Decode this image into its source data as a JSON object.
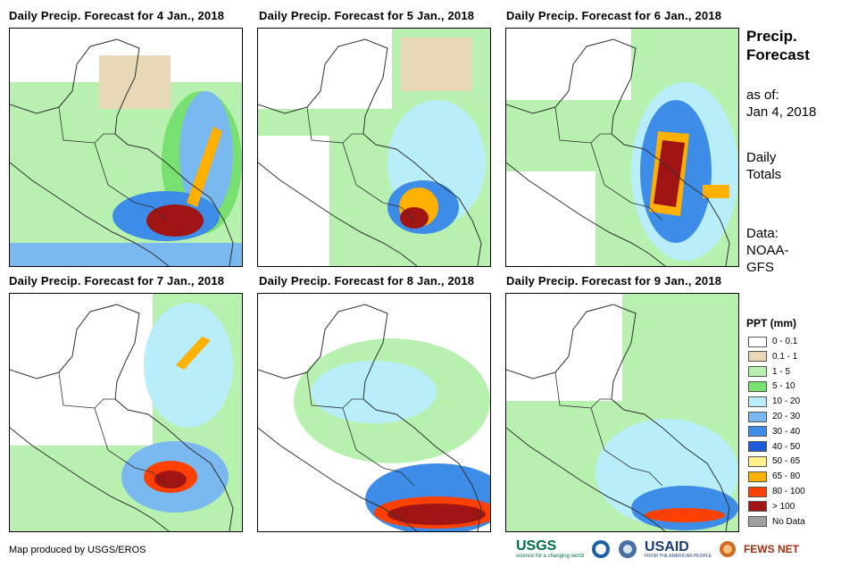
{
  "panels": [
    {
      "title": "Daily Precip. Forecast for 4 Jan., 2018"
    },
    {
      "title": "Daily Precip. Forecast for 5 Jan., 2018"
    },
    {
      "title": "Daily Precip. Forecast for 6 Jan., 2018"
    },
    {
      "title": "Daily Precip. Forecast for 7 Jan., 2018"
    },
    {
      "title": "Daily Precip. Forecast for 8 Jan., 2018"
    },
    {
      "title": "Daily Precip. Forecast for 9 Jan., 2018"
    }
  ],
  "sidebar": {
    "title_line1": "Precip.",
    "title_line2": "Forecast",
    "asof_line1": "as of:",
    "asof_line2": "Jan 4, 2018",
    "totals_line1": "Daily",
    "totals_line2": "Totals",
    "data_line1": "Data:",
    "data_line2": "NOAA-",
    "data_line3": "GFS"
  },
  "legend": {
    "title": "PPT (mm)",
    "items": [
      {
        "label": "0 - 0.1",
        "color": "#ffffff"
      },
      {
        "label": "0.1 - 1",
        "color": "#e8d8b8"
      },
      {
        "label": "1 - 5",
        "color": "#b8f0b0"
      },
      {
        "label": "5 - 10",
        "color": "#78e070"
      },
      {
        "label": "10 - 20",
        "color": "#b8eefa"
      },
      {
        "label": "20 - 30",
        "color": "#7ab8f0"
      },
      {
        "label": "30 - 40",
        "color": "#3c8ce8"
      },
      {
        "label": "40 - 50",
        "color": "#1c5cd8"
      },
      {
        "label": "50 - 65",
        "color": "#fff08c"
      },
      {
        "label": "65 - 80",
        "color": "#ffb000"
      },
      {
        "label": "80 - 100",
        "color": "#ff4000"
      },
      {
        "label": "> 100",
        "color": "#a01414"
      },
      {
        "label": "No Data",
        "color": "#a0a0a0"
      }
    ]
  },
  "credit": "Map produced by USGS/EROS",
  "logos": {
    "usgs": "USGS",
    "usgs_tagline": "science for a changing world",
    "usaid": "USAID",
    "usaid_tagline": "FROM THE AMERICAN PEOPLE",
    "fewsnet": "FEWS NET"
  }
}
